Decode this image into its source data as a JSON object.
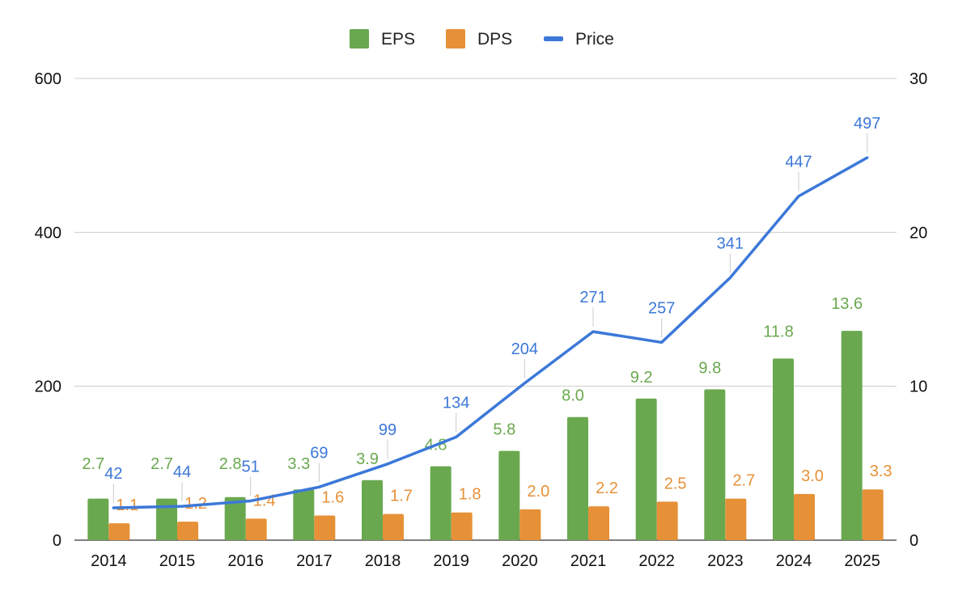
{
  "chart_data": {
    "type": "bar",
    "categories": [
      "2014",
      "2015",
      "2016",
      "2017",
      "2018",
      "2019",
      "2020",
      "2021",
      "2022",
      "2023",
      "2024",
      "2025"
    ],
    "series": [
      {
        "name": "EPS",
        "type": "bar",
        "axis": "right",
        "color": "#6aa84f",
        "values": [
          2.7,
          2.7,
          2.8,
          3.3,
          3.9,
          4.8,
          5.8,
          8.0,
          9.2,
          9.8,
          11.8,
          13.6
        ],
        "labels": [
          "2.7",
          "2.7",
          "2.8",
          "3.3",
          "3.9",
          "4.8",
          "5.8",
          "8.0",
          "9.2",
          "9.8",
          "11.8",
          "13.6"
        ]
      },
      {
        "name": "DPS",
        "type": "bar",
        "axis": "right",
        "color": "#e69138",
        "values": [
          1.1,
          1.2,
          1.4,
          1.6,
          1.7,
          1.8,
          2.0,
          2.2,
          2.5,
          2.7,
          3.0,
          3.3
        ],
        "labels": [
          "1.1",
          "1.2",
          "1.4",
          "1.6",
          "1.7",
          "1.8",
          "2.0",
          "2.2",
          "2.5",
          "2.7",
          "3.0",
          "3.3"
        ]
      },
      {
        "name": "Price",
        "type": "line",
        "axis": "left",
        "color": "#3c78d8",
        "values": [
          42,
          44,
          51,
          69,
          99,
          134,
          204,
          271,
          257,
          341,
          447,
          497
        ],
        "labels": [
          "42",
          "44",
          "51",
          "69",
          "99",
          "134",
          "204",
          "271",
          "257",
          "341",
          "447",
          "497"
        ]
      }
    ],
    "y_left": {
      "ylim": [
        0,
        600
      ],
      "ticks": [
        0,
        200,
        400,
        600
      ]
    },
    "y_right": {
      "ylim": [
        0,
        30
      ],
      "ticks": [
        0,
        10,
        20,
        30
      ]
    },
    "grid": true,
    "legend": "top-center"
  }
}
